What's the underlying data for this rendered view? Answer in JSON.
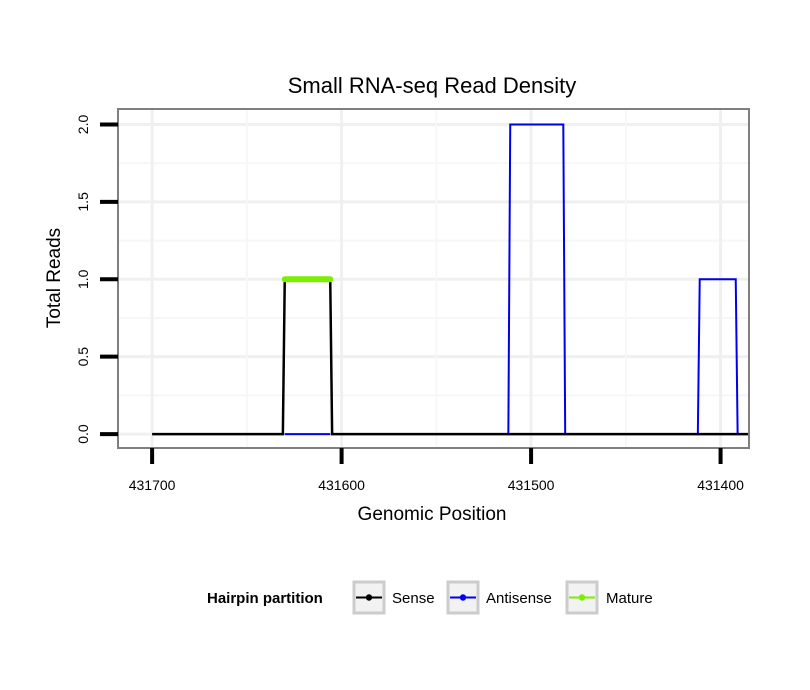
{
  "chart_data": {
    "type": "line",
    "title": "Small RNA-seq Read Density",
    "xlabel": "Genomic Position",
    "ylabel": "Total Reads",
    "xlim": [
      431718,
      431385
    ],
    "x_reversed": true,
    "ylim": [
      -0.09,
      2.1
    ],
    "x_ticks": [
      431700,
      431600,
      431500,
      431400
    ],
    "x_tick_labels": [
      "431700",
      "431600",
      "431500",
      "431400"
    ],
    "y_ticks": [
      0.0,
      0.5,
      1.0,
      1.5,
      2.0
    ],
    "y_tick_labels": [
      "0.0",
      "0.5",
      "1.0",
      "1.5",
      "2.0"
    ],
    "grid": true,
    "legend": {
      "title": "Hairpin partition",
      "position": "bottom",
      "entries": [
        "Sense",
        "Antisense",
        "Mature"
      ]
    },
    "series": [
      {
        "name": "Antisense",
        "color": "#0000ee",
        "x": [
          431630,
          431606,
          431511,
          431483,
          431411,
          431392
        ],
        "y": [
          0,
          0,
          2,
          2,
          1,
          1
        ],
        "step_segments": [
          [
            431630,
            431606,
            0
          ],
          [
            431511,
            431483,
            2
          ],
          [
            431411,
            431392,
            1
          ]
        ]
      },
      {
        "name": "Sense",
        "color": "#000000",
        "x": [
          431700,
          431630,
          431606,
          431400
        ],
        "y": [
          0,
          1,
          1,
          0
        ],
        "step_segments": [
          [
            431700,
            431630,
            0
          ],
          [
            431630,
            431606,
            1
          ],
          [
            431606,
            431400,
            0
          ]
        ]
      },
      {
        "name": "Mature",
        "color": "#7cee00",
        "x": [
          431630,
          431606
        ],
        "y": [
          1,
          1
        ],
        "step_segments": [
          [
            431630,
            431606,
            1
          ]
        ]
      }
    ]
  }
}
